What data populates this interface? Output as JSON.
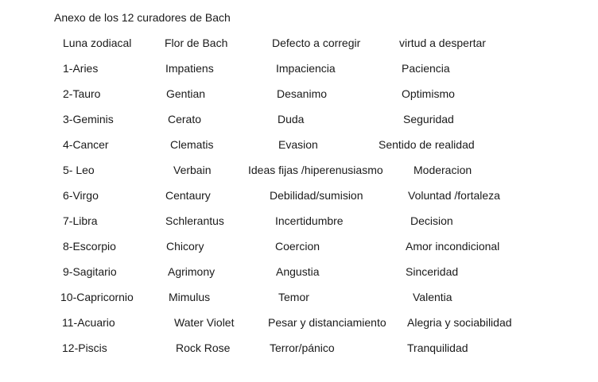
{
  "title": "Anexo de los 12 curadores de Bach",
  "headers": [
    "Luna zodiacal",
    "Flor de Bach",
    "Defecto a corregir",
    "virtud a despertar"
  ],
  "rows": [
    [
      "1-Aries",
      "Impatiens",
      "Impaciencia",
      "Paciencia"
    ],
    [
      "2-Tauro",
      "Gentian",
      "Desanimo",
      "Optimismo"
    ],
    [
      "3-Geminis",
      "Cerato",
      "Duda",
      "Seguridad"
    ],
    [
      "4-Cancer",
      "Clematis",
      "Evasion",
      "Sentido de realidad"
    ],
    [
      "5- Leo",
      "Verbain",
      "Ideas fijas /hiperenusiasmo",
      "Moderacion"
    ],
    [
      "6-Virgo",
      "Centaury",
      "Debilidad/sumision",
      "Voluntad /fortaleza"
    ],
    [
      "7-Libra",
      "Schlerantus",
      "Incertidumbre",
      "Decision"
    ],
    [
      "8-Escorpio",
      "Chicory",
      "Coercion",
      "Amor incondicional"
    ],
    [
      "9-Sagitario",
      "Agrimony",
      "Angustia",
      "Sinceridad"
    ],
    [
      "10-Capricornio",
      "Mimulus",
      "Temor",
      "Valentia"
    ],
    [
      "11-Acuario",
      "Water Violet",
      "Pesar y distanciamiento",
      "Alegria y sociabilidad"
    ],
    [
      "12-Piscis",
      "Rock Rose",
      "Terror/pánico",
      "Tranquilidad"
    ]
  ]
}
